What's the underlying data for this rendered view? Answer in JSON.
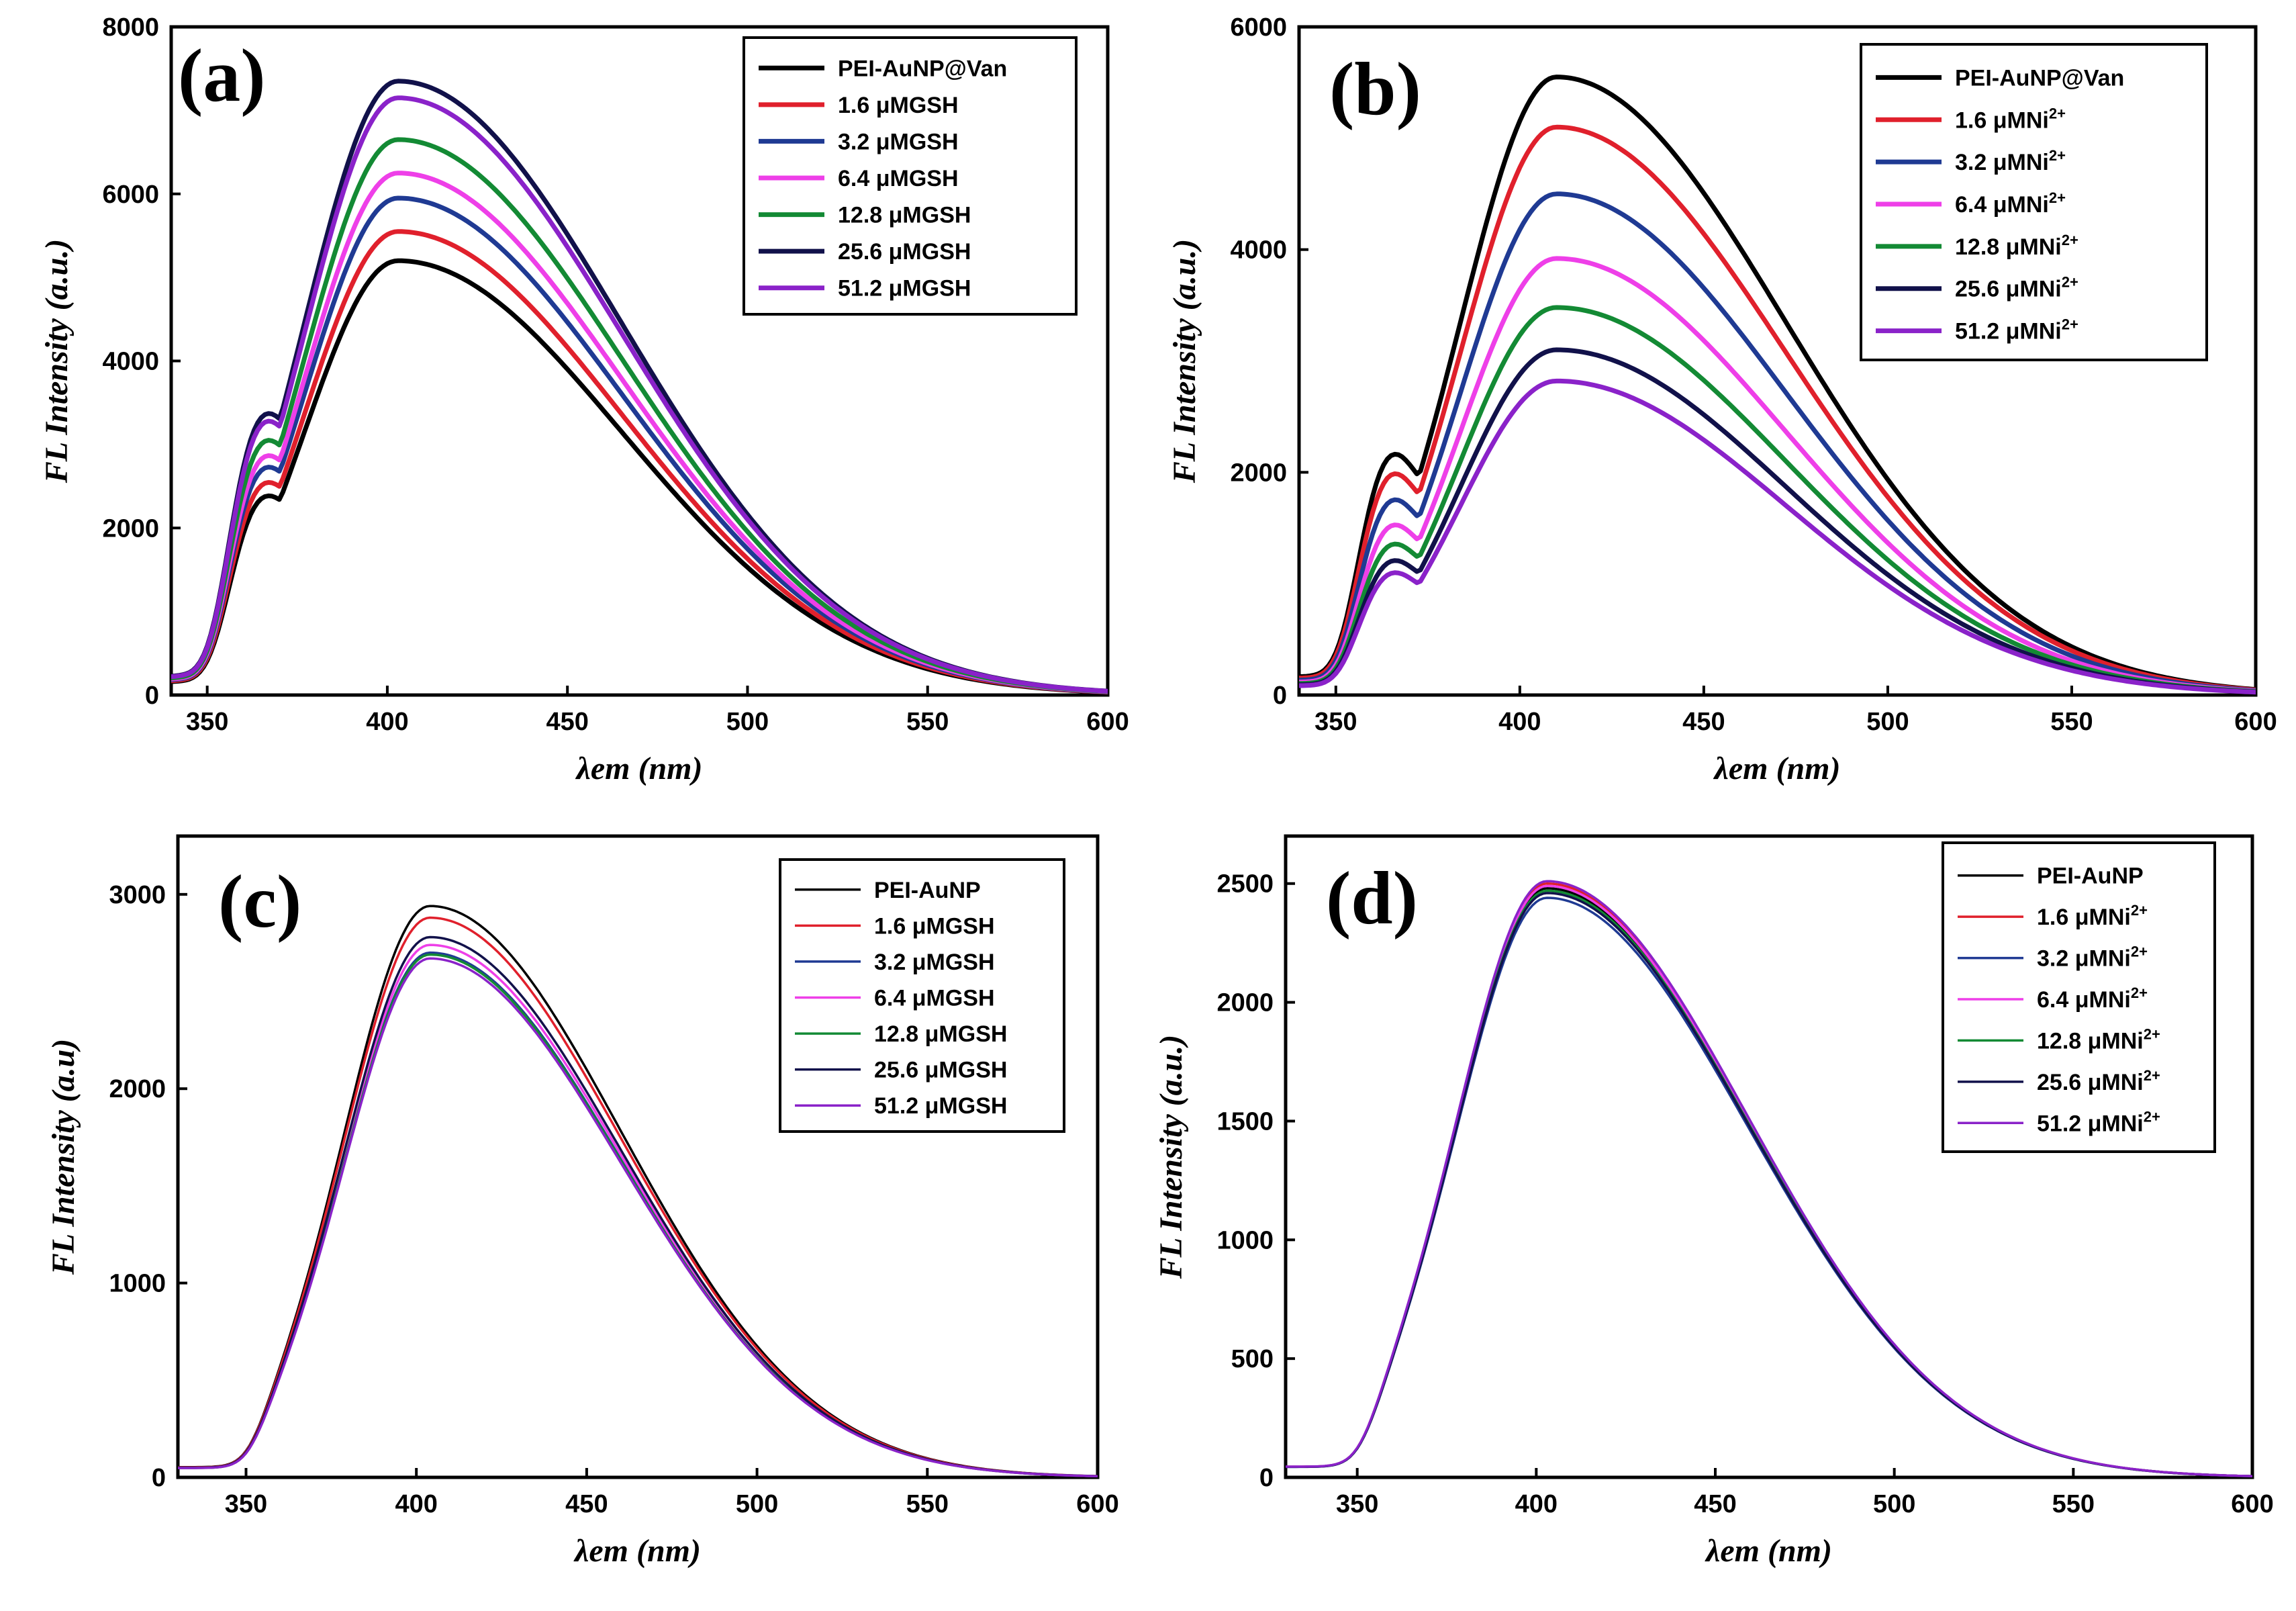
{
  "chart_data": [
    {
      "type": "line",
      "panel_label": "(a)",
      "xlabel": "λem (nm)",
      "ylabel": "FL Intensity (a.u.)",
      "xlim": [
        340,
        600
      ],
      "ylim": [
        0,
        8000
      ],
      "xticks": [
        350,
        400,
        450,
        500,
        550,
        600
      ],
      "yticks": [
        0,
        2000,
        4000,
        6000,
        8000
      ],
      "line_weight": "bold",
      "series": [
        {
          "name": "PEI-AuNP@Van",
          "peak": 5200,
          "peak_x": 403,
          "color": "#000000"
        },
        {
          "name": "1.6 μMGSH",
          "peak": 5550,
          "peak_x": 403,
          "color": "#e0202c"
        },
        {
          "name": "3.2 μMGSH",
          "peak": 5950,
          "peak_x": 403,
          "color": "#1f3a93"
        },
        {
          "name": "6.4 μMGSH",
          "peak": 6250,
          "peak_x": 403,
          "color": "#ee3fe8"
        },
        {
          "name": "12.8 μMGSH",
          "peak": 6650,
          "peak_x": 403,
          "color": "#138a34"
        },
        {
          "name": "25.6 μMGSH",
          "peak": 7350,
          "peak_x": 403,
          "color": "#11114a"
        },
        {
          "name": "51.2 μMGSH",
          "peak": 7150,
          "peak_x": 403,
          "color": "#8a22c9"
        }
      ]
    },
    {
      "type": "line",
      "panel_label": "(b)",
      "xlabel": "λem (nm)",
      "ylabel": "FL Intensity (a.u.)",
      "xlim": [
        340,
        600
      ],
      "ylim": [
        0,
        6000
      ],
      "xticks": [
        350,
        400,
        450,
        500,
        550,
        600
      ],
      "yticks": [
        0,
        2000,
        4000,
        6000
      ],
      "line_weight": "bold",
      "series": [
        {
          "name": "PEI-AuNP@Van",
          "peak": 5550,
          "peak_x": 410,
          "color": "#000000"
        },
        {
          "name": "1.6 μMNi2+",
          "peak": 5100,
          "peak_x": 410,
          "color": "#e0202c"
        },
        {
          "name": "3.2 μMNi2+",
          "peak": 4500,
          "peak_x": 410,
          "color": "#1f3a93"
        },
        {
          "name": "6.4 μMNi2+",
          "peak": 3920,
          "peak_x": 410,
          "color": "#ee3fe8"
        },
        {
          "name": "12.8 μMNi2+",
          "peak": 3480,
          "peak_x": 410,
          "color": "#138a34"
        },
        {
          "name": "25.6 μMNi2+",
          "peak": 3100,
          "peak_x": 410,
          "color": "#11114a"
        },
        {
          "name": "51.2 μMNi2+",
          "peak": 2820,
          "peak_x": 410,
          "color": "#8a22c9"
        }
      ]
    },
    {
      "type": "line",
      "panel_label": "(c)",
      "xlabel": "λem (nm)",
      "ylabel": "FL Intensity (a.u)",
      "xlim": [
        330,
        600
      ],
      "ylim": [
        0,
        3300
      ],
      "xticks": [
        350,
        400,
        450,
        500,
        550,
        600
      ],
      "yticks": [
        0,
        1000,
        2000,
        3000
      ],
      "line_weight": "thin",
      "series": [
        {
          "name": "PEI-AuNP",
          "peak": 2940,
          "peak_x": 404,
          "color": "#000000"
        },
        {
          "name": "1.6 μMGSH",
          "peak": 2880,
          "peak_x": 404,
          "color": "#e0202c"
        },
        {
          "name": "3.2 μMGSH",
          "peak": 2700,
          "peak_x": 404,
          "color": "#1f3a93"
        },
        {
          "name": "6.4 μMGSH",
          "peak": 2740,
          "peak_x": 404,
          "color": "#ee3fe8"
        },
        {
          "name": "12.8 μMGSH",
          "peak": 2690,
          "peak_x": 404,
          "color": "#138a34"
        },
        {
          "name": "25.6 μMGSH",
          "peak": 2780,
          "peak_x": 404,
          "color": "#11114a"
        },
        {
          "name": "51.2 μMGSH",
          "peak": 2670,
          "peak_x": 404,
          "color": "#8a22c9"
        }
      ]
    },
    {
      "type": "line",
      "panel_label": "(d)",
      "xlabel": "λem (nm)",
      "ylabel": "FL Intensity (a.u.)",
      "xlim": [
        330,
        600
      ],
      "ylim": [
        0,
        2700
      ],
      "xticks": [
        350,
        400,
        450,
        500,
        550,
        600
      ],
      "yticks": [
        0,
        500,
        1000,
        1500,
        2000,
        2500
      ],
      "line_weight": "thin",
      "series": [
        {
          "name": "PEI-AuNP",
          "peak": 2480,
          "peak_x": 403,
          "color": "#000000"
        },
        {
          "name": "1.6 μMNi2+",
          "peak": 2500,
          "peak_x": 403,
          "color": "#e0202c"
        },
        {
          "name": "3.2 μMNi2+",
          "peak": 2440,
          "peak_x": 403,
          "color": "#1f3a93"
        },
        {
          "name": "6.4 μMNi2+",
          "peak": 2490,
          "peak_x": 403,
          "color": "#ee3fe8"
        },
        {
          "name": "12.8 μMNi2+",
          "peak": 2470,
          "peak_x": 403,
          "color": "#138a34"
        },
        {
          "name": "25.6 μMNi2+",
          "peak": 2460,
          "peak_x": 403,
          "color": "#11114a"
        },
        {
          "name": "51.2 μMNi2+",
          "peak": 2510,
          "peak_x": 403,
          "color": "#8a22c9"
        }
      ]
    }
  ]
}
